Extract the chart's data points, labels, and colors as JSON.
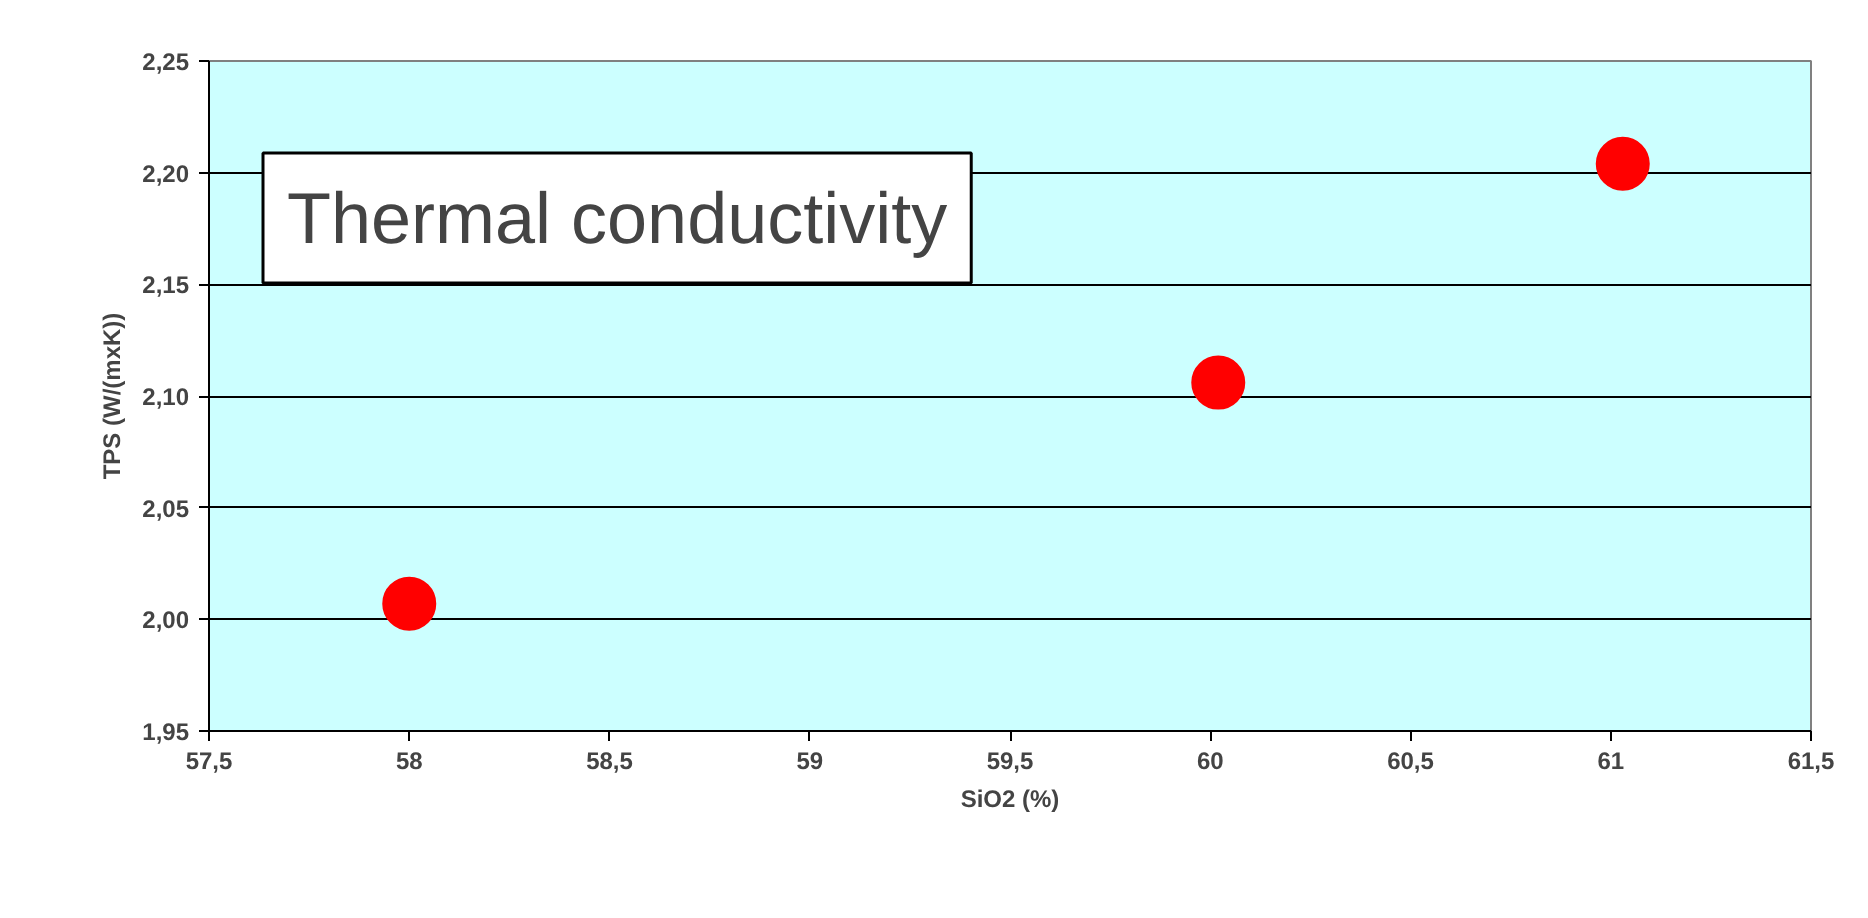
{
  "chart_data": {
    "type": "scatter",
    "title": "Thermal conductivity",
    "xlabel": "SiO2 (%)",
    "ylabel": "TPS (W/(mxK))",
    "x": [
      58,
      60.02,
      61.03
    ],
    "series": [
      {
        "color": "#ff0000",
        "values": [
          2.007,
          2.106,
          2.204
        ]
      }
    ],
    "xlim": [
      57.5,
      61.5
    ],
    "xticks": [
      {
        "value": 57.5,
        "label": "57,5"
      },
      58,
      {
        "value": 58.5,
        "label": "58,5"
      },
      59,
      {
        "value": 59.5,
        "label": "59,5"
      },
      60,
      {
        "value": 60.5,
        "label": "60,5"
      },
      61,
      {
        "value": 61.5,
        "label": "61,5"
      }
    ],
    "ylim": [
      1.95,
      2.25
    ],
    "yticks": [
      {
        "value": 1.95,
        "label": "1,95"
      },
      {
        "value": 2.0,
        "label": "2,00"
      },
      {
        "value": 2.05,
        "label": "2,05"
      },
      {
        "value": 2.1,
        "label": "2,10"
      },
      {
        "value": 2.15,
        "label": "2,15"
      },
      {
        "value": 2.2,
        "label": "2,20"
      },
      {
        "value": 2.25,
        "label": "2,25"
      }
    ],
    "grid": "y",
    "marker": "circle"
  }
}
